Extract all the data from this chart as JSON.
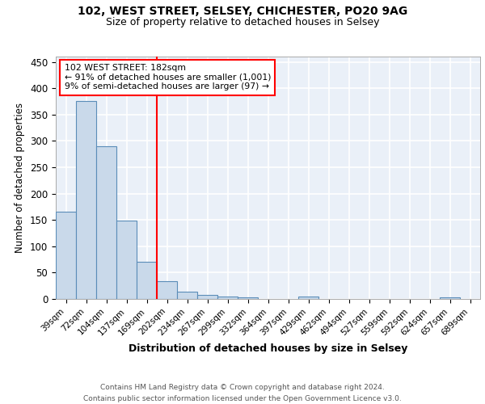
{
  "title1": "102, WEST STREET, SELSEY, CHICHESTER, PO20 9AG",
  "title2": "Size of property relative to detached houses in Selsey",
  "xlabel": "Distribution of detached houses by size in Selsey",
  "ylabel": "Number of detached properties",
  "categories": [
    "39sqm",
    "72sqm",
    "104sqm",
    "137sqm",
    "169sqm",
    "202sqm",
    "234sqm",
    "267sqm",
    "299sqm",
    "332sqm",
    "364sqm",
    "397sqm",
    "429sqm",
    "462sqm",
    "494sqm",
    "527sqm",
    "559sqm",
    "592sqm",
    "624sqm",
    "657sqm",
    "689sqm"
  ],
  "values": [
    165,
    375,
    290,
    148,
    70,
    33,
    14,
    7,
    5,
    3,
    0,
    0,
    4,
    0,
    0,
    0,
    0,
    0,
    0,
    3,
    0
  ],
  "bar_color": "#c9d9ea",
  "bar_edge_color": "#5b8db8",
  "red_line_bin": 5,
  "annotation_line1": "102 WEST STREET: 182sqm",
  "annotation_line2": "← 91% of detached houses are smaller (1,001)",
  "annotation_line3": "9% of semi-detached houses are larger (97) →",
  "annotation_box_color": "white",
  "annotation_box_edge_color": "red",
  "red_line_color": "red",
  "footer_text": "Contains HM Land Registry data © Crown copyright and database right 2024.\nContains public sector information licensed under the Open Government Licence v3.0.",
  "bg_color": "#eaf0f8",
  "grid_color": "white",
  "ylim": [
    0,
    460
  ],
  "yticks": [
    0,
    50,
    100,
    150,
    200,
    250,
    300,
    350,
    400,
    450
  ]
}
